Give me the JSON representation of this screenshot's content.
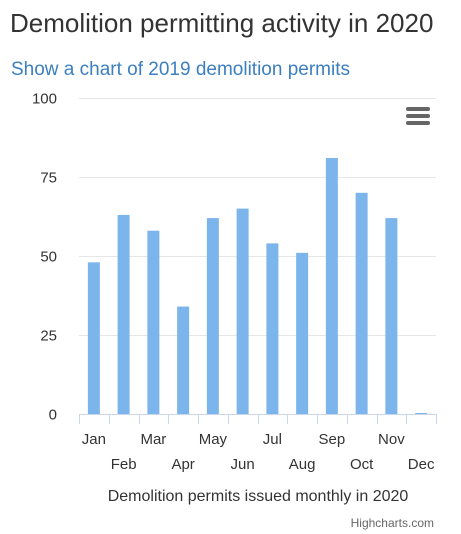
{
  "page": {
    "title": "Demolition permitting activity in 2020",
    "toggle_link": "Show a chart of 2019 demolition permits",
    "credits": "Highcharts.com",
    "menu_icon": "hamburger-menu-icon"
  },
  "colors": {
    "bar": "#7cb5ec",
    "link": "#3c7fc0",
    "gridline": "#e6e6e6"
  },
  "chart_data": {
    "type": "bar",
    "title": "",
    "xlabel": "Demolition permits issued monthly in 2020",
    "ylabel": "",
    "categories": [
      "Jan",
      "Feb",
      "Mar",
      "Apr",
      "May",
      "Jun",
      "Jul",
      "Aug",
      "Sep",
      "Oct",
      "Nov",
      "Dec"
    ],
    "values": [
      48,
      63,
      58,
      34,
      62,
      65,
      54,
      51,
      81,
      70,
      62,
      0
    ],
    "ylim": [
      0,
      100
    ],
    "yticks": [
      0,
      25,
      50,
      75,
      100
    ],
    "grid": true,
    "legend": false
  }
}
